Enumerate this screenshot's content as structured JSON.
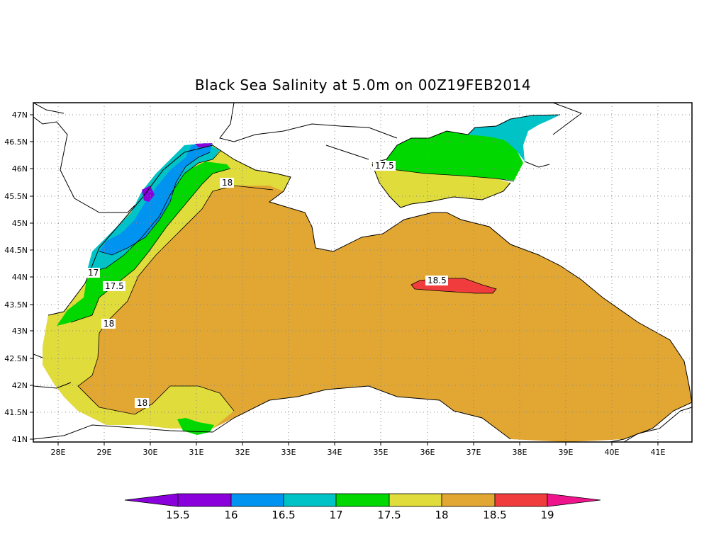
{
  "title": "Black Sea Salinity at 5.0m on 00Z19FEB2014",
  "colors": {
    "land": "#ffffff",
    "c15_16": "#8a00dc",
    "c16_165": "#0094f0",
    "c165_17": "#00c3c8",
    "c17_175": "#00d800",
    "c175_18": "#e0dc3c",
    "c18_185": "#e2a732",
    "c185_19": "#f03c3c",
    "c19_up": "#f0148c"
  },
  "axes": {
    "lon_labels": [
      "28E",
      "29E",
      "30E",
      "31E",
      "32E",
      "33E",
      "34E",
      "35E",
      "36E",
      "37E",
      "38E",
      "39E",
      "40E",
      "41E"
    ],
    "lat_labels": [
      "47N",
      "46.5N",
      "46N",
      "45.5N",
      "45N",
      "44.5N",
      "44N",
      "43.5N",
      "43N",
      "42.5N",
      "42N",
      "41.5N",
      "41N"
    ]
  },
  "contour_labels": [
    "18",
    "17",
    "17.5",
    "18",
    "18",
    "17.5",
    "18.5"
  ],
  "colorbar": {
    "labels": [
      "15.5",
      "16",
      "16.5",
      "17",
      "17.5",
      "18",
      "18.5",
      "19"
    ]
  }
}
